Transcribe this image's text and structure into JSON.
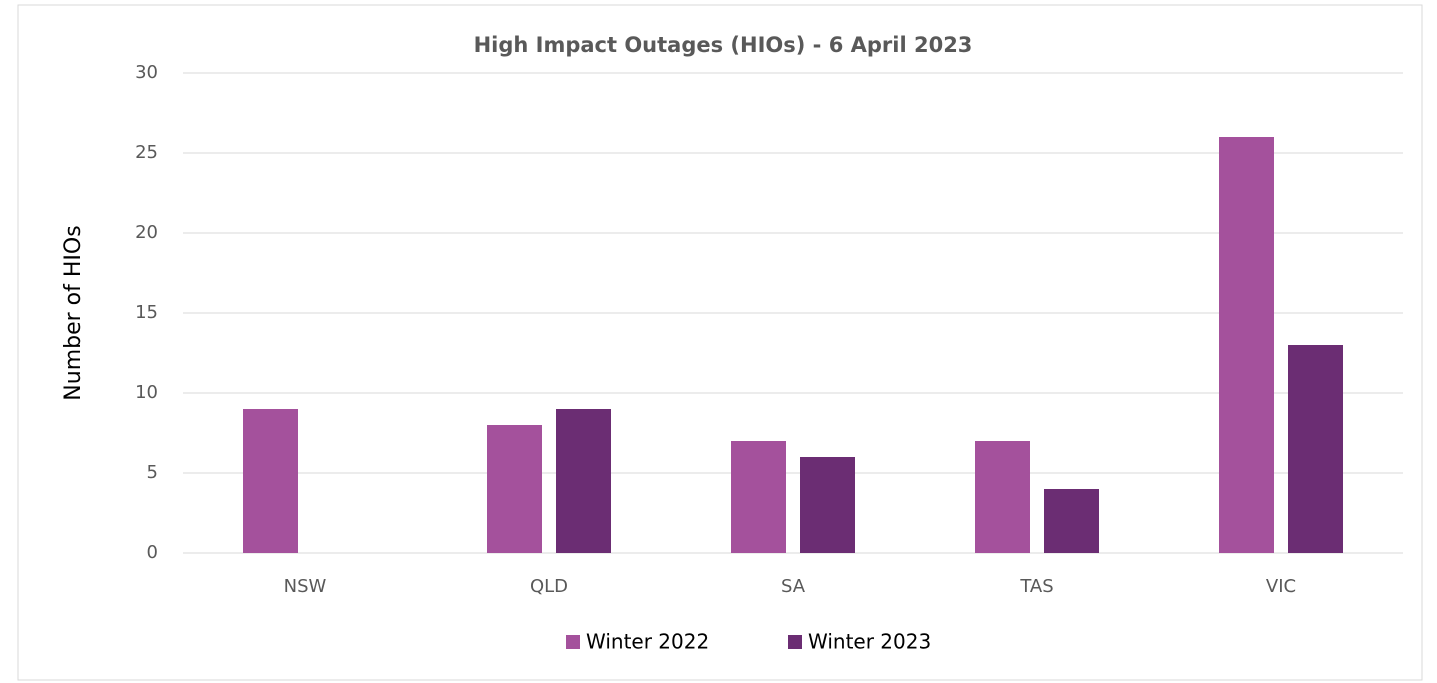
{
  "chart_data": {
    "type": "bar",
    "title": "High Impact Outages (HIOs) - 6 April 2023",
    "y_label": "Number of HIOs",
    "categories": [
      "NSW",
      "QLD",
      "SA",
      "TAS",
      "VIC"
    ],
    "series": [
      {
        "name": "Winter 2022",
        "color": "#a4519c",
        "values": [
          9,
          8,
          7,
          7,
          26
        ]
      },
      {
        "name": "Winter 2023",
        "color": "#6b2d73",
        "values": [
          0,
          9,
          6,
          4,
          13
        ]
      }
    ],
    "ylim": [
      0,
      30
    ],
    "yticks": [
      0,
      5,
      10,
      15,
      20,
      25,
      30
    ],
    "grid": true,
    "legend": "bottom"
  }
}
